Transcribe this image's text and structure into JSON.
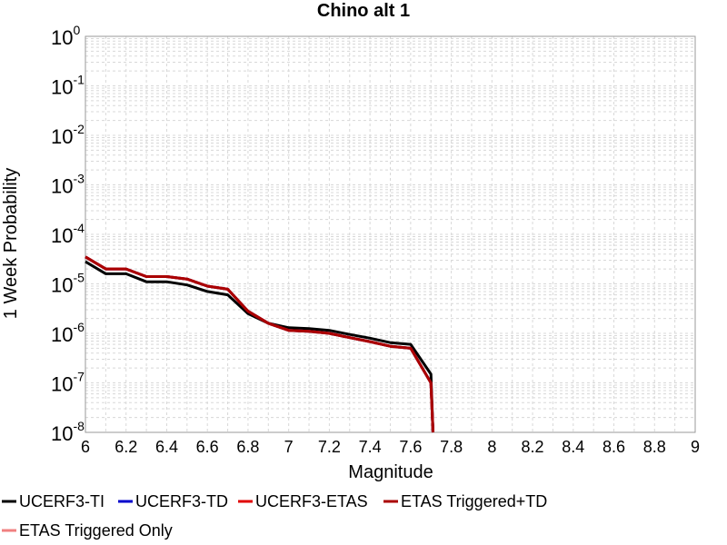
{
  "colors": {
    "ucerf3_ti": "#000000",
    "ucerf3_td": "#0000cc",
    "ucerf3_etas": "#e00000",
    "etas_triggered_td": "#aa0000",
    "etas_triggered_only": "#f08080",
    "grid": "#d8d8d8"
  },
  "chart_data": {
    "type": "line",
    "title": "Chino alt 1",
    "xlabel": "Magnitude",
    "ylabel": "1 Week Probability",
    "xlim": [
      6,
      9
    ],
    "ylim": [
      1e-08,
      1
    ],
    "yscale": "log",
    "grid": true,
    "legend_position": "bottom",
    "x_ticks": [
      "6",
      "6.2",
      "6.4",
      "6.6",
      "6.8",
      "7",
      "7.2",
      "7.4",
      "7.6",
      "7.8",
      "8",
      "8.2",
      "8.4",
      "8.6",
      "8.8",
      "9"
    ],
    "y_ticks": [
      {
        "base": "10",
        "exp": "0"
      },
      {
        "base": "10",
        "exp": "-1"
      },
      {
        "base": "10",
        "exp": "-2"
      },
      {
        "base": "10",
        "exp": "-3"
      },
      {
        "base": "10",
        "exp": "-4"
      },
      {
        "base": "10",
        "exp": "-5"
      },
      {
        "base": "10",
        "exp": "-6"
      },
      {
        "base": "10",
        "exp": "-7"
      },
      {
        "base": "10",
        "exp": "-8"
      }
    ],
    "series": [
      {
        "name": "UCERF3-TI",
        "color_key": "ucerf3_ti",
        "x": [
          6.0,
          6.1,
          6.2,
          6.3,
          6.4,
          6.5,
          6.6,
          6.7,
          6.8,
          6.9,
          7.0,
          7.1,
          7.2,
          7.3,
          7.4,
          7.5,
          7.6,
          7.7,
          7.71
        ],
        "y": [
          2.8e-05,
          1.6e-05,
          1.6e-05,
          1.1e-05,
          1.1e-05,
          9.5e-06,
          7e-06,
          6e-06,
          2.5e-06,
          1.6e-06,
          1.3e-06,
          1.25e-06,
          1.15e-06,
          9.5e-07,
          8e-07,
          6.5e-07,
          6e-07,
          1.5e-07,
          1e-08
        ]
      },
      {
        "name": "UCERF3-TD",
        "color_key": "ucerf3_td",
        "x": [
          6.0,
          6.1,
          6.2,
          6.3,
          6.4,
          6.5,
          6.6,
          6.7,
          6.8,
          6.9,
          7.0,
          7.1,
          7.2,
          7.3,
          7.4,
          7.5,
          7.6,
          7.7,
          7.71
        ],
        "y": [
          3.5e-05,
          2e-05,
          2e-05,
          1.4e-05,
          1.4e-05,
          1.25e-05,
          9e-06,
          7.8e-06,
          2.8e-06,
          1.6e-06,
          1.15e-06,
          1.1e-06,
          1e-06,
          8.2e-07,
          6.8e-07,
          5.5e-07,
          5e-07,
          1e-07,
          1e-08
        ]
      },
      {
        "name": "UCERF3-ETAS",
        "color_key": "ucerf3_etas",
        "x": [
          6.0,
          6.1,
          6.2,
          6.3,
          6.4,
          6.5,
          6.6,
          6.7,
          6.8,
          6.9,
          7.0,
          7.1,
          7.2,
          7.3,
          7.4,
          7.5,
          7.6,
          7.7,
          7.71
        ],
        "y": [
          3.5e-05,
          2e-05,
          2e-05,
          1.4e-05,
          1.4e-05,
          1.25e-05,
          9e-06,
          7.8e-06,
          2.8e-06,
          1.6e-06,
          1.15e-06,
          1.1e-06,
          1e-06,
          8.2e-07,
          6.8e-07,
          5.5e-07,
          5e-07,
          1e-07,
          1e-08
        ]
      },
      {
        "name": "ETAS Triggered+TD",
        "color_key": "etas_triggered_td",
        "x": [
          6.0,
          6.1,
          6.2,
          6.3,
          6.4,
          6.5,
          6.6,
          6.7,
          6.8,
          6.9,
          7.0,
          7.1,
          7.2,
          7.3,
          7.4,
          7.5,
          7.6,
          7.7,
          7.71
        ],
        "y": [
          3.5e-05,
          2e-05,
          2e-05,
          1.4e-05,
          1.4e-05,
          1.25e-05,
          9e-06,
          7.8e-06,
          2.8e-06,
          1.6e-06,
          1.15e-06,
          1.1e-06,
          1e-06,
          8.2e-07,
          6.8e-07,
          5.5e-07,
          5e-07,
          1e-07,
          1e-08
        ]
      },
      {
        "name": "ETAS Triggered Only",
        "color_key": "etas_triggered_only",
        "x": [],
        "y": []
      }
    ]
  }
}
